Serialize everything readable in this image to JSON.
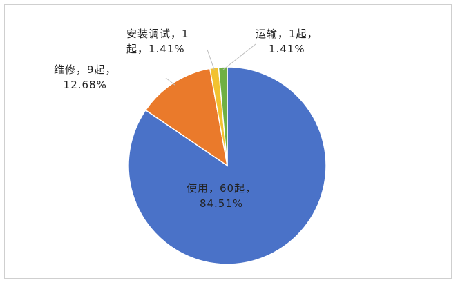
{
  "chart_data": {
    "type": "pie",
    "title": "",
    "slices": [
      {
        "name": "使用",
        "value": 60,
        "percent": 84.51,
        "color": "#4a72c8",
        "label_lines": [
          "使用，60起，",
          "84.51%"
        ]
      },
      {
        "name": "维修",
        "value": 9,
        "percent": 12.68,
        "color": "#ea7a2b",
        "label_lines": [
          "维修，9起，",
          "12.68%"
        ]
      },
      {
        "name": "安装调试",
        "value": 1,
        "percent": 1.41,
        "color": "#f2c230",
        "label_lines": [
          "安装调试，1",
          "起，1.41%"
        ]
      },
      {
        "name": "运输",
        "value": 1,
        "percent": 1.41,
        "color": "#6fb043",
        "label_lines": [
          "运输，1起，",
          "1.41%"
        ]
      }
    ],
    "start_angle_deg": 0,
    "direction": "clockwise",
    "legend": "none"
  }
}
